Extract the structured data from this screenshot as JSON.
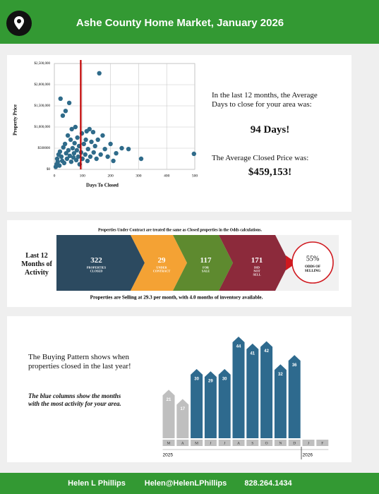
{
  "header": {
    "title": "Ashe County Home Market, January 2026"
  },
  "chart_data": [
    {
      "type": "scatter",
      "x_label": "Days To Closed",
      "y_label": "Property Price",
      "color": "#2f6b8a",
      "x": [
        5,
        8,
        10,
        12,
        15,
        18,
        20,
        22,
        25,
        28,
        30,
        32,
        35,
        38,
        40,
        42,
        45,
        48,
        50,
        53,
        55,
        58,
        60,
        62,
        65,
        68,
        70,
        72,
        75,
        78,
        80,
        82,
        85,
        88,
        90,
        95,
        98,
        100,
        105,
        110,
        112,
        115,
        118,
        120,
        125,
        128,
        132,
        138,
        140,
        145,
        150,
        155,
        160,
        165,
        172,
        180,
        190,
        200,
        210,
        220,
        240,
        264,
        309,
        497
      ],
      "y": [
        60000,
        120000,
        250000,
        180000,
        350000,
        90000,
        420000,
        1670000,
        300000,
        200000,
        1270000,
        520000,
        150000,
        600000,
        1380000,
        380000,
        250000,
        800000,
        450000,
        1570000,
        320000,
        700000,
        180000,
        950000,
        500000,
        280000,
        380000,
        620000,
        1000000,
        220000,
        450000,
        750000,
        300000,
        550000,
        120000,
        400000,
        850000,
        250000,
        600000,
        350000,
        700000,
        900000,
        200000,
        480000,
        950000,
        300000,
        650000,
        880000,
        400000,
        550000,
        250000,
        700000,
        2270000,
        350000,
        800000,
        480000,
        300000,
        600000,
        200000,
        380000,
        500000,
        480000,
        250000,
        367000
      ],
      "xlim": [
        0,
        500
      ],
      "xticks": [
        0,
        100,
        200,
        300,
        400,
        500
      ],
      "ylim": [
        0,
        2500000
      ],
      "yticks": [
        {
          "value": 0,
          "label": "$0"
        },
        {
          "value": 500000,
          "label": "$500000"
        },
        {
          "value": 1000000,
          "label": "$1,000,000"
        },
        {
          "value": 1500000,
          "label": "$1,500,000"
        },
        {
          "value": 2000000,
          "label": "$2,000,000"
        },
        {
          "value": 2500000,
          "label": "$2,500,000"
        }
      ],
      "grid": true,
      "ref_line": {
        "x": 94,
        "color": "#c00000"
      }
    },
    {
      "type": "bar",
      "categories": [
        "M",
        "A",
        "M",
        "J",
        "J",
        "A",
        "S",
        "O",
        "N",
        "D",
        "J",
        "F"
      ],
      "values": [
        21,
        17,
        30,
        29,
        30,
        44,
        41,
        42,
        32,
        36,
        null,
        null
      ],
      "colors": [
        "#bfbfbf",
        "#bfbfbf",
        "#2e6a8e",
        "#2e6a8e",
        "#2e6a8e",
        "#2e6a8e",
        "#2e6a8e",
        "#2e6a8e",
        "#2e6a8e",
        "#2e6a8e",
        "#bfbfbf",
        "#bfbfbf"
      ],
      "groups": [
        {
          "label": "2025",
          "start": 0
        },
        {
          "label": "2026",
          "start": 10
        }
      ]
    }
  ],
  "summary": {
    "days_text": "In the last 12 months, the Average Days to close for your area was:",
    "days": "94 Days!",
    "price_text": "The Average Closed Price was:",
    "price": "$459,153!"
  },
  "activity": {
    "label": "Last 12 Months of Activity",
    "note": "Properties Under Contract are treated the same as Closed properties in the Odds calculations.",
    "steps": [
      {
        "value": 322,
        "label": "PROPERTIES CLOSED",
        "color": "#2c4a60"
      },
      {
        "value": 29,
        "label": "UNDER CONTRACT",
        "color": "#f4a234"
      },
      {
        "value": 117,
        "label": "FOR SALE",
        "color": "#5e8a2f"
      },
      {
        "value": 171,
        "label": "DID NOT SELL",
        "color": "#8c2a3b"
      }
    ],
    "odds": {
      "value": "55%",
      "label": "ODDS OF SELLING",
      "color": "#d0191f"
    },
    "footnote": "Properties are Selling at 29.3 per month, with 4.0 months of inventory available."
  },
  "pattern": {
    "text": "The Buying Pattern shows when properties closed in the last year!",
    "note": "The blue columns show the months with the most activity for your area."
  },
  "footer": {
    "name": "Helen L Phillips",
    "email": "Helen@HelenLPhillips",
    "phone": "828.264.1434"
  }
}
